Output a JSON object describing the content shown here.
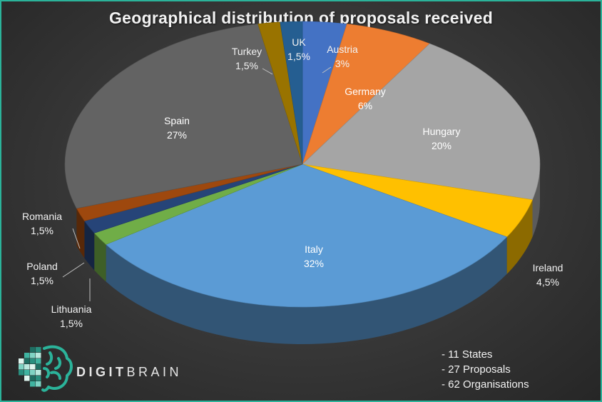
{
  "chart_data": {
    "type": "pie",
    "title": "Geographical distribution of proposals received",
    "slices": [
      {
        "label": "Austria",
        "value": 3,
        "value_label": "3%",
        "color": "#4472c4"
      },
      {
        "label": "Germany",
        "value": 6,
        "value_label": "6%",
        "color": "#ed7d31"
      },
      {
        "label": "Hungary",
        "value": 20,
        "value_label": "20%",
        "color": "#a5a5a5"
      },
      {
        "label": "Ireland",
        "value": 4.5,
        "value_label": "4,5%",
        "color": "#ffc000"
      },
      {
        "label": "Italy",
        "value": 32,
        "value_label": "32%",
        "color": "#5b9bd5"
      },
      {
        "label": "Lithuania",
        "value": 1.5,
        "value_label": "1,5%",
        "color": "#70ad47"
      },
      {
        "label": "Poland",
        "value": 1.5,
        "value_label": "1,5%",
        "color": "#264478"
      },
      {
        "label": "Romania",
        "value": 1.5,
        "value_label": "1,5%",
        "color": "#9e480e"
      },
      {
        "label": "Spain",
        "value": 27,
        "value_label": "27%",
        "color": "#636363"
      },
      {
        "label": "Turkey",
        "value": 1.5,
        "value_label": "1,5%",
        "color": "#997300"
      },
      {
        "label": "UK",
        "value": 1.5,
        "value_label": "1,5%",
        "color": "#255e91"
      }
    ]
  },
  "brand": {
    "prefix": "DIGIT",
    "suffix": "BRAIN"
  },
  "stats": [
    "- 11 States",
    "- 27 Proposals",
    "- 62 Organisations"
  ],
  "colors": {
    "border": "#2bb39a",
    "logo_teal": "#2bb39a"
  }
}
